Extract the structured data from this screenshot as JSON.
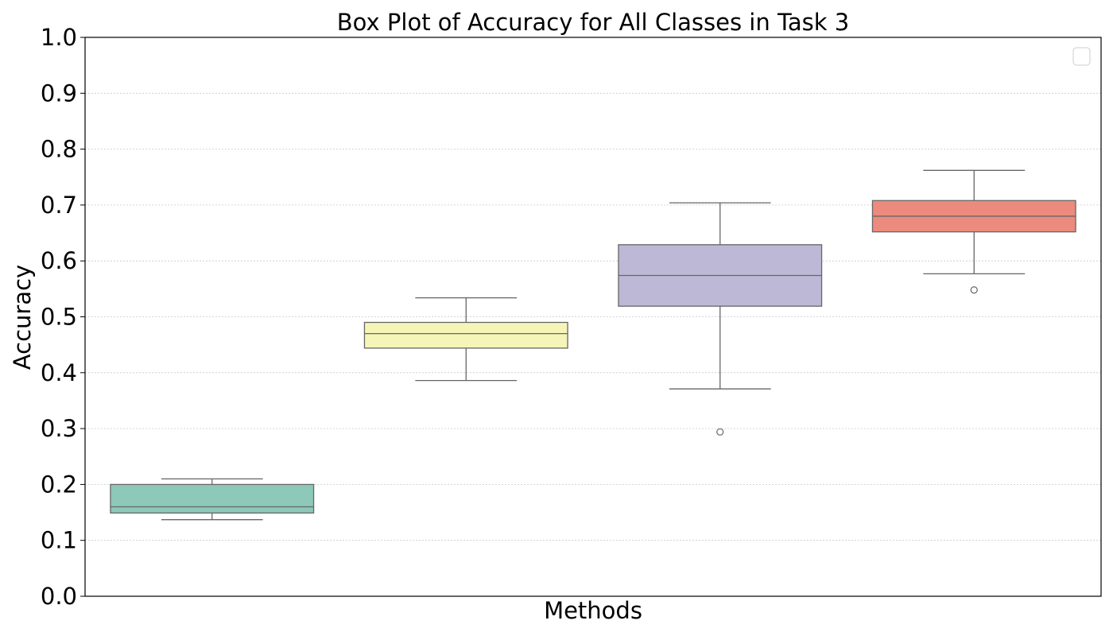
{
  "chart_data": {
    "type": "box",
    "title": "Box Plot of Accuracy for All Classes in Task 3",
    "xlabel": "Methods",
    "ylabel": "Accuracy",
    "ylim": [
      0,
      1
    ],
    "yticks": [
      "0.0",
      "0.1",
      "0.2",
      "0.3",
      "0.4",
      "0.5",
      "0.6",
      "0.7",
      "0.8",
      "0.9",
      "1.0"
    ],
    "grid": "horizontal-dotted",
    "legend": "top-right, empty",
    "series": [
      {
        "whisker_low": 0.137,
        "q1": 0.149,
        "median": 0.16,
        "q3": 0.2,
        "whisker_high": 0.21,
        "outliers": [],
        "color": "#8dc8b8"
      },
      {
        "whisker_low": 0.386,
        "q1": 0.444,
        "median": 0.47,
        "q3": 0.49,
        "whisker_high": 0.534,
        "outliers": [],
        "color": "#f5f5b8"
      },
      {
        "whisker_low": 0.371,
        "q1": 0.519,
        "median": 0.574,
        "q3": 0.629,
        "whisker_high": 0.704,
        "outliers": [
          0.294
        ],
        "color": "#bdb8d6"
      },
      {
        "whisker_low": 0.577,
        "q1": 0.652,
        "median": 0.68,
        "q3": 0.708,
        "whisker_high": 0.762,
        "outliers": [
          0.548
        ],
        "color": "#ec8a7e"
      }
    ]
  }
}
